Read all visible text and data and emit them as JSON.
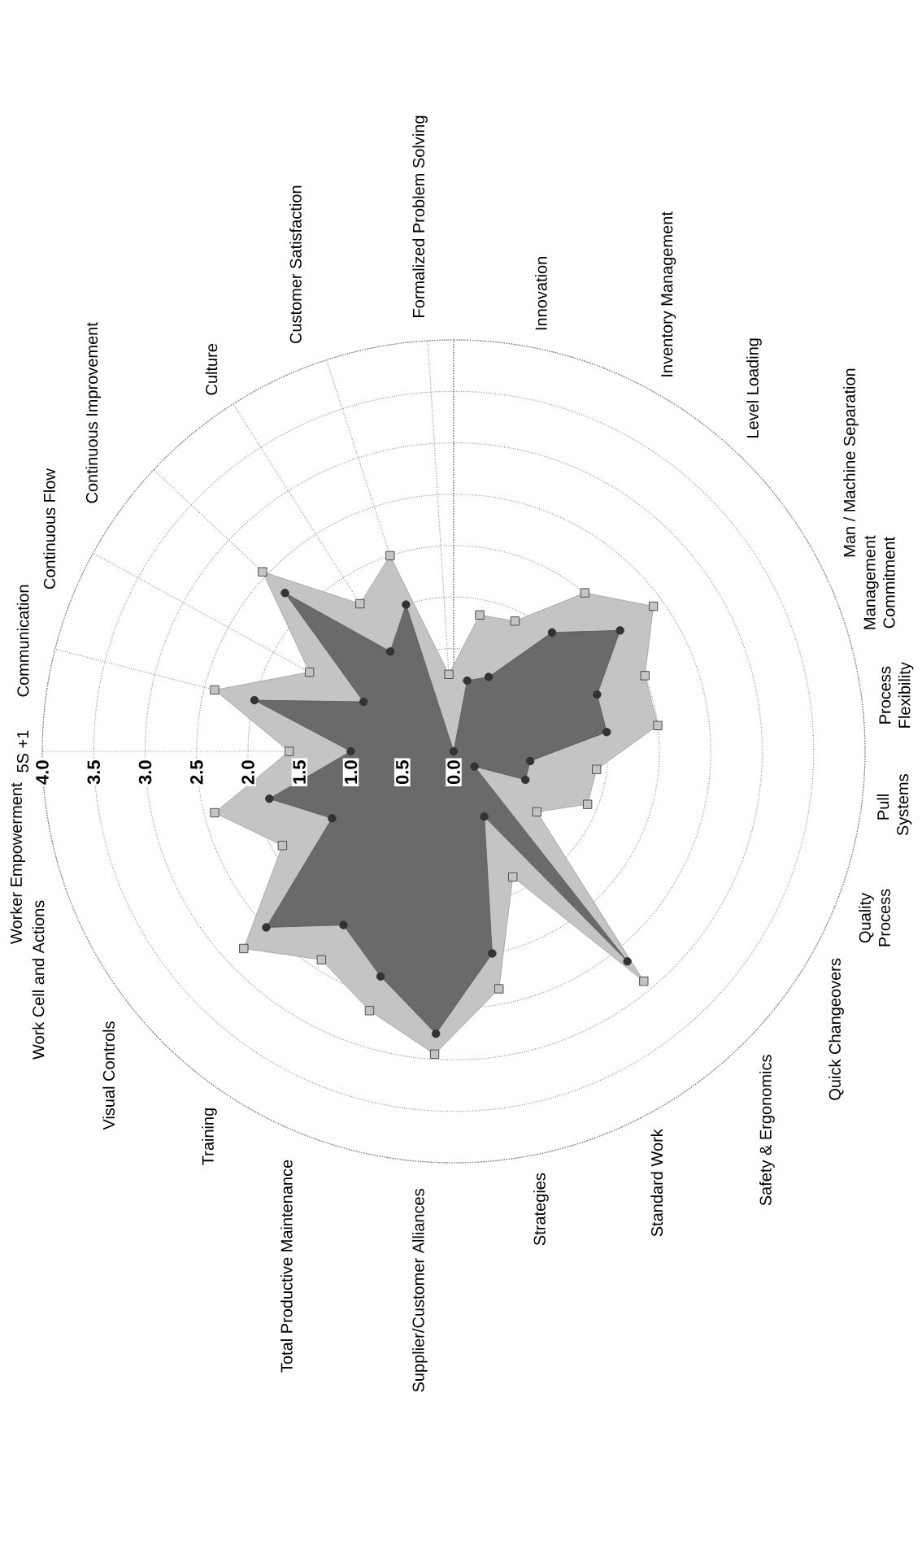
{
  "chart_data": {
    "type": "radar",
    "categories": [
      "5S +1",
      "Communication",
      "Continuous Flow",
      "Continuous Improvement",
      "Culture",
      "Customer Satisfaction",
      "Formalized Problem Solving",
      "Innovation",
      "Inventory Management",
      "Level Loading",
      "Man / Machine Separation",
      "Management Commitment",
      "Process Flexibility",
      "Pull Systems",
      "Quality Process",
      "Quick Changeovers",
      "Safety & Ergonomics",
      "Standard Work",
      "Strategies",
      "Supplier/Customer Alliances",
      "Total Productive Maintenance",
      "Training",
      "Visual Controls",
      "Work Cell and Actions",
      "Worker Empowerment"
    ],
    "series": [
      {
        "color": "#c4c4c4",
        "marker": "square",
        "values": [
          1.6,
          2.4,
          1.6,
          2.55,
          1.7,
          2.0,
          0.75,
          1.35,
          1.4,
          2.0,
          2.4,
          2.0,
          2.0,
          1.4,
          1.4,
          1.0,
          2.9,
          1.35,
          2.35,
          2.95,
          2.65,
          2.4,
          2.8,
          1.9,
          2.4
        ]
      },
      {
        "color": "#6a6a6a",
        "marker": "circle",
        "values": [
          1.0,
          2.0,
          1.0,
          2.25,
          1.15,
          1.5,
          0.0,
          0.7,
          0.8,
          1.5,
          2.0,
          1.5,
          1.5,
          0.75,
          0.75,
          0.25,
          2.65,
          0.7,
          2.0,
          2.75,
          2.3,
          2.0,
          2.5,
          1.35,
          1.85
        ]
      }
    ],
    "ylim": [
      0,
      4
    ],
    "yticks": [
      {
        "value": 0,
        "label": "0.0"
      },
      {
        "value": 0.5,
        "label": "0.5"
      },
      {
        "value": 1,
        "label": "1.0"
      },
      {
        "value": 1.5,
        "label": "1.5"
      },
      {
        "value": 2,
        "label": "2.0"
      },
      {
        "value": 2.5,
        "label": "2.5"
      },
      {
        "value": 3,
        "label": "3.0"
      },
      {
        "value": 3.5,
        "label": "3.5"
      },
      {
        "value": 4,
        "label": "4.0"
      }
    ],
    "grid": true
  }
}
